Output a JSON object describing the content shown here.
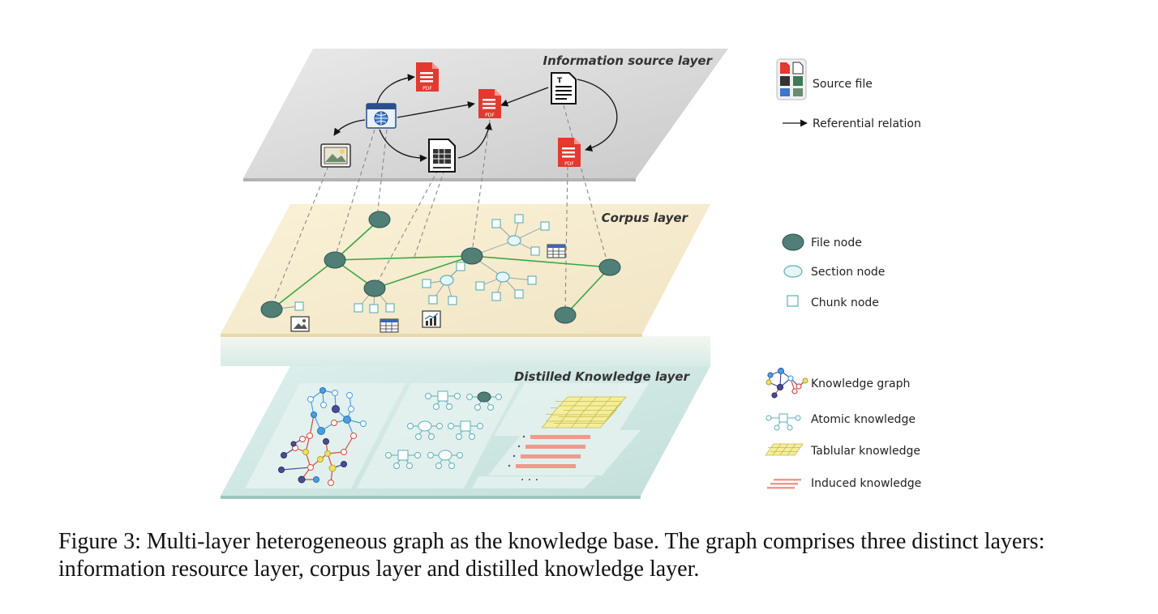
{
  "layers": {
    "source": "Information source layer",
    "corpus": "Corpus layer",
    "distilled": "Distilled Knowledge layer"
  },
  "icons": {
    "pdf_text": "PDF",
    "text_doc_letter": "T",
    "ellipsis": "· · ·"
  },
  "legend": {
    "source_file": "Source file",
    "referential_relation": "Referential relation",
    "file_node": "File node",
    "section_node": "Section node",
    "chunk_node": "Chunk node",
    "knowledge_graph": "Knowledge graph",
    "atomic_knowledge": "Atomic knowledge",
    "tabular_knowledge": "Tablular knowledge",
    "induced_knowledge": "Induced knowledge"
  },
  "caption": "Figure 3: Multi-layer heterogeneous graph as the knowledge base. The graph comprises three distinct layers: information resource layer, corpus layer and distilled knowledge layer.",
  "colors": {
    "source_layer": "#d6d6d6",
    "corpus_layer": "#f6ebcc",
    "distilled_layer": "#cfe7e3",
    "file_node": "#4f7f76",
    "section_node": "#e6f6f6",
    "chunk_node": "#5ab0b8",
    "corpus_edge": "#3aa645",
    "pdf_red": "#e3392f",
    "kg_blue": "#4a9ee0",
    "kg_red": "#d64a3c",
    "kg_yellow": "#f2e060",
    "kg_purple": "#4a4d92",
    "tabular_yellow": "#f4ee9e",
    "induced_salmon": "#ef9a8a"
  }
}
